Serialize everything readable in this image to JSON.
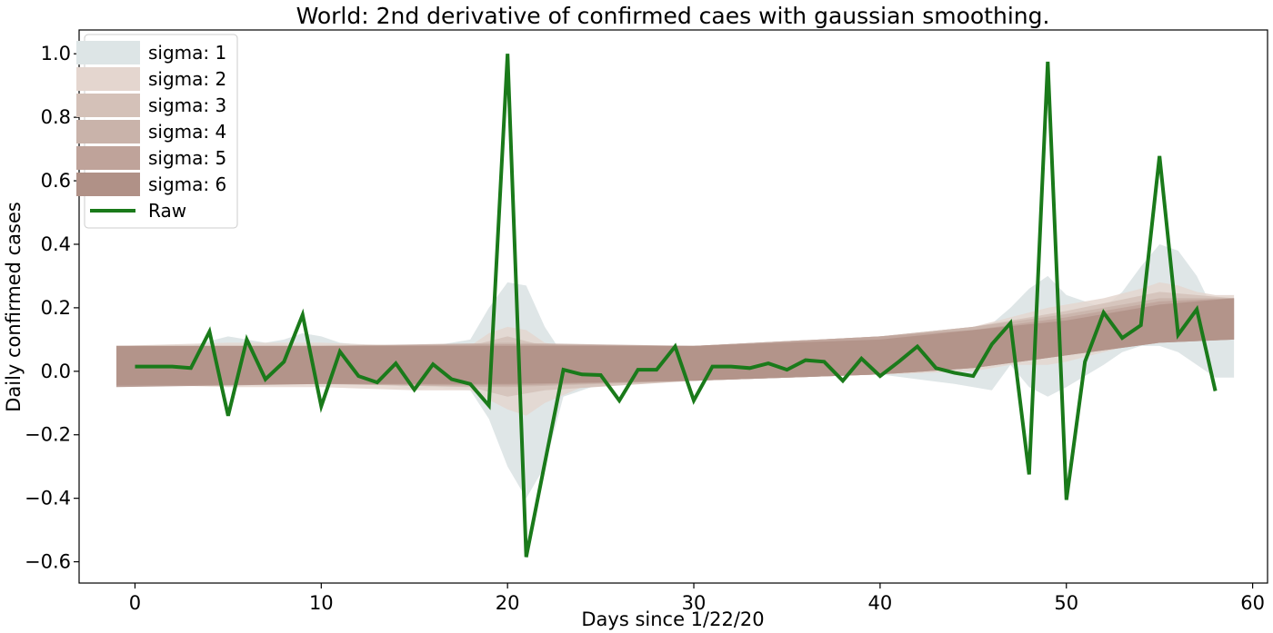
{
  "chart_data": {
    "type": "line",
    "title": "World: 2nd derivative of confirmed caes with gaussian smoothing.",
    "xlabel": "Days since 1/22/20",
    "ylabel": "Daily confirmed cases",
    "xlim": [
      -3,
      60.8
    ],
    "ylim": [
      -0.667,
      1.075
    ],
    "x_ticks": [
      0,
      10,
      20,
      30,
      40,
      50,
      60
    ],
    "x_tick_labels": [
      "0",
      "10",
      "20",
      "30",
      "40",
      "50",
      "60"
    ],
    "y_ticks": [
      -0.6,
      -0.4,
      -0.2,
      0.0,
      0.2,
      0.4,
      0.6,
      0.8,
      1.0
    ],
    "y_tick_labels": [
      "−0.6",
      "−0.4",
      "−0.2",
      "0.0",
      "0.2",
      "0.4",
      "0.6",
      "0.8",
      "1.0"
    ],
    "grid": false,
    "legend_position": "top-left",
    "raw": {
      "name": "Raw",
      "color": "#1a7a1a",
      "x": [
        0,
        1,
        2,
        3,
        4,
        5,
        6,
        7,
        8,
        9,
        10,
        11,
        12,
        13,
        14,
        15,
        16,
        17,
        18,
        19,
        20,
        21,
        22,
        23,
        24,
        25,
        26,
        27,
        28,
        29,
        30,
        31,
        32,
        33,
        34,
        35,
        36,
        37,
        38,
        39,
        40,
        41,
        42,
        43,
        44,
        45,
        46,
        47,
        48,
        49,
        50,
        51,
        52,
        53,
        54,
        55,
        56,
        57,
        58
      ],
      "y": [
        0.015,
        0.015,
        0.015,
        0.01,
        0.125,
        -0.14,
        0.1,
        -0.025,
        0.03,
        0.178,
        -0.11,
        0.062,
        -0.015,
        -0.035,
        0.025,
        -0.058,
        0.022,
        -0.025,
        -0.04,
        -0.108,
        1.0,
        -0.585,
        -0.29,
        0.005,
        -0.01,
        -0.012,
        -0.092,
        0.005,
        0.005,
        0.078,
        -0.092,
        0.015,
        0.015,
        0.01,
        0.025,
        0.005,
        0.035,
        0.03,
        -0.03,
        0.04,
        -0.015,
        0.03,
        0.078,
        0.01,
        -0.005,
        -0.015,
        0.085,
        0.152,
        -0.325,
        0.975,
        -0.405,
        0.03,
        0.185,
        0.105,
        0.145,
        0.678,
        0.115,
        0.195,
        -0.062
      ]
    },
    "series": [
      {
        "name": "sigma: 1",
        "color": "#dde5e6",
        "x": [
          -1,
          2,
          3,
          5,
          7,
          8,
          9,
          10,
          11,
          13,
          15,
          16,
          18,
          19,
          20,
          21,
          22,
          23,
          25,
          28,
          30,
          35,
          40,
          44,
          46,
          47,
          48,
          49,
          50,
          52,
          53,
          54,
          55,
          56,
          57,
          58,
          59
        ],
        "lower": [
          -0.03,
          -0.02,
          -0.02,
          -0.05,
          -0.03,
          -0.04,
          -0.03,
          -0.05,
          -0.04,
          -0.03,
          -0.06,
          -0.05,
          -0.06,
          -0.15,
          -0.3,
          -0.4,
          -0.3,
          -0.08,
          -0.04,
          -0.03,
          -0.02,
          -0.02,
          -0.01,
          -0.04,
          -0.06,
          0.02,
          -0.05,
          -0.08,
          -0.05,
          0.02,
          0.06,
          0.08,
          0.08,
          0.06,
          0.02,
          -0.02,
          -0.02
        ],
        "upper": [
          0.08,
          0.08,
          0.08,
          0.11,
          0.09,
          0.1,
          0.12,
          0.11,
          0.09,
          0.08,
          0.08,
          0.08,
          0.1,
          0.2,
          0.28,
          0.27,
          0.14,
          0.05,
          0.07,
          0.07,
          0.08,
          0.09,
          0.11,
          0.13,
          0.15,
          0.2,
          0.26,
          0.3,
          0.24,
          0.2,
          0.25,
          0.33,
          0.4,
          0.38,
          0.3,
          0.18,
          0.18
        ]
      },
      {
        "name": "sigma: 2",
        "color": "#e4d6cf",
        "x": [
          -1,
          5,
          10,
          15,
          18,
          19,
          20,
          21,
          22,
          24,
          30,
          40,
          45,
          47,
          49,
          50,
          52,
          54,
          55,
          56,
          57,
          58,
          59
        ],
        "lower": [
          -0.04,
          -0.05,
          -0.05,
          -0.06,
          -0.06,
          -0.09,
          -0.12,
          -0.14,
          -0.1,
          -0.05,
          -0.03,
          -0.01,
          0.0,
          0.02,
          0.02,
          0.03,
          0.06,
          0.09,
          0.1,
          0.1,
          0.1,
          0.1,
          0.1
        ],
        "upper": [
          0.08,
          0.09,
          0.09,
          0.08,
          0.08,
          0.12,
          0.14,
          0.13,
          0.09,
          0.07,
          0.08,
          0.11,
          0.14,
          0.17,
          0.2,
          0.21,
          0.23,
          0.26,
          0.28,
          0.27,
          0.25,
          0.24,
          0.24
        ]
      },
      {
        "name": "sigma: 3",
        "color": "#d4c1b8",
        "x": [
          -1,
          10,
          18,
          20,
          22,
          30,
          40,
          45,
          50,
          55,
          59
        ],
        "lower": [
          -0.04,
          -0.04,
          -0.05,
          -0.08,
          -0.06,
          -0.03,
          -0.01,
          0.01,
          0.05,
          0.1,
          0.1
        ],
        "upper": [
          0.08,
          0.08,
          0.08,
          0.11,
          0.08,
          0.08,
          0.11,
          0.14,
          0.19,
          0.25,
          0.23
        ]
      },
      {
        "name": "sigma: 4",
        "color": "#c9b3aa",
        "x": [
          -1,
          10,
          20,
          30,
          40,
          45,
          50,
          55,
          59
        ],
        "lower": [
          -0.045,
          -0.04,
          -0.05,
          -0.03,
          -0.01,
          0.01,
          0.05,
          0.09,
          0.1
        ],
        "upper": [
          0.08,
          0.08,
          0.09,
          0.08,
          0.11,
          0.14,
          0.18,
          0.23,
          0.23
        ]
      },
      {
        "name": "sigma: 5",
        "color": "#bfa39a",
        "x": [
          -1,
          10,
          20,
          30,
          40,
          45,
          50,
          55,
          59
        ],
        "lower": [
          -0.045,
          -0.04,
          -0.045,
          -0.03,
          -0.01,
          0.01,
          0.05,
          0.09,
          0.1
        ],
        "upper": [
          0.08,
          0.08,
          0.085,
          0.08,
          0.11,
          0.13,
          0.17,
          0.22,
          0.23
        ]
      },
      {
        "name": "sigma: 6",
        "color": "#b09187",
        "x": [
          -1,
          10,
          20,
          30,
          40,
          45,
          50,
          55,
          59
        ],
        "lower": [
          -0.05,
          -0.04,
          -0.04,
          -0.03,
          -0.01,
          0.01,
          0.05,
          0.09,
          0.1
        ],
        "upper": [
          0.08,
          0.08,
          0.08,
          0.08,
          0.1,
          0.13,
          0.16,
          0.21,
          0.23
        ]
      }
    ]
  }
}
